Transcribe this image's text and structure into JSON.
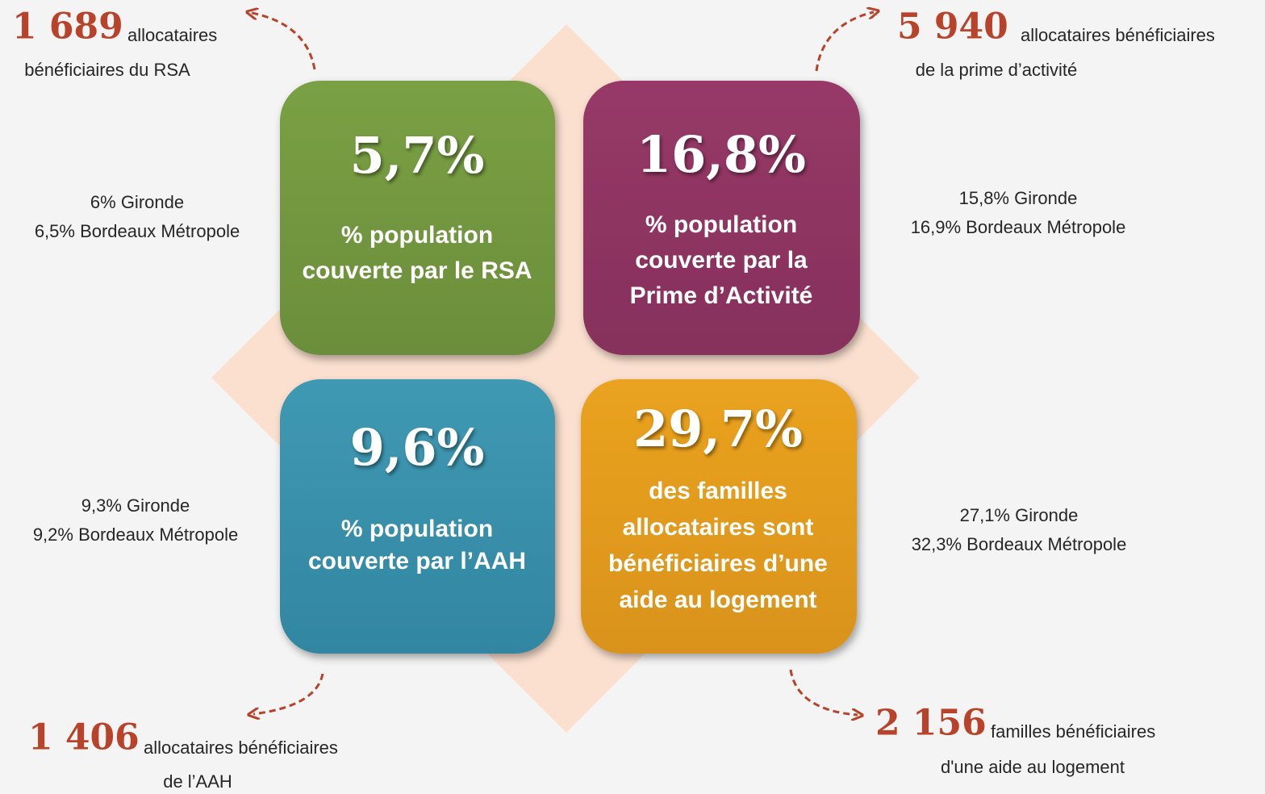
{
  "tiles": [
    {
      "value": "5,7%",
      "caption": [
        "% population",
        "couverte par le RSA"
      ],
      "comparison": [
        "6% Gironde",
        "6,5% Bordeaux Métropole"
      ],
      "callout": {
        "number": "1 689",
        "text": [
          "allocataires",
          "bénéficiaires du RSA"
        ]
      }
    },
    {
      "value": "16,8%",
      "caption": [
        "% population",
        "couverte par la",
        "Prime d’Activité"
      ],
      "comparison": [
        "15,8% Gironde",
        "16,9% Bordeaux Métropole"
      ],
      "callout": {
        "number": "5 940",
        "text": [
          "allocataires bénéficiaires",
          "de la prime d’activité"
        ]
      }
    },
    {
      "value": "9,6%",
      "caption": [
        "% population",
        "couverte par l’AAH"
      ],
      "comparison": [
        "9,3% Gironde",
        "9,2% Bordeaux Métropole"
      ],
      "callout": {
        "number": "1 406",
        "text": [
          "allocataires bénéficiaires",
          "de l’AAH"
        ]
      }
    },
    {
      "value": "29,7%",
      "caption": [
        "des familles",
        "allocataires sont",
        "bénéficiaires d’une",
        "aide au logement"
      ],
      "comparison": [
        "27,1% Gironde",
        "32,3% Bordeaux Métropole"
      ],
      "callout": {
        "number": "2 156",
        "text": [
          "familles bénéficiaires",
          "d'une aide au logement"
        ]
      }
    }
  ]
}
